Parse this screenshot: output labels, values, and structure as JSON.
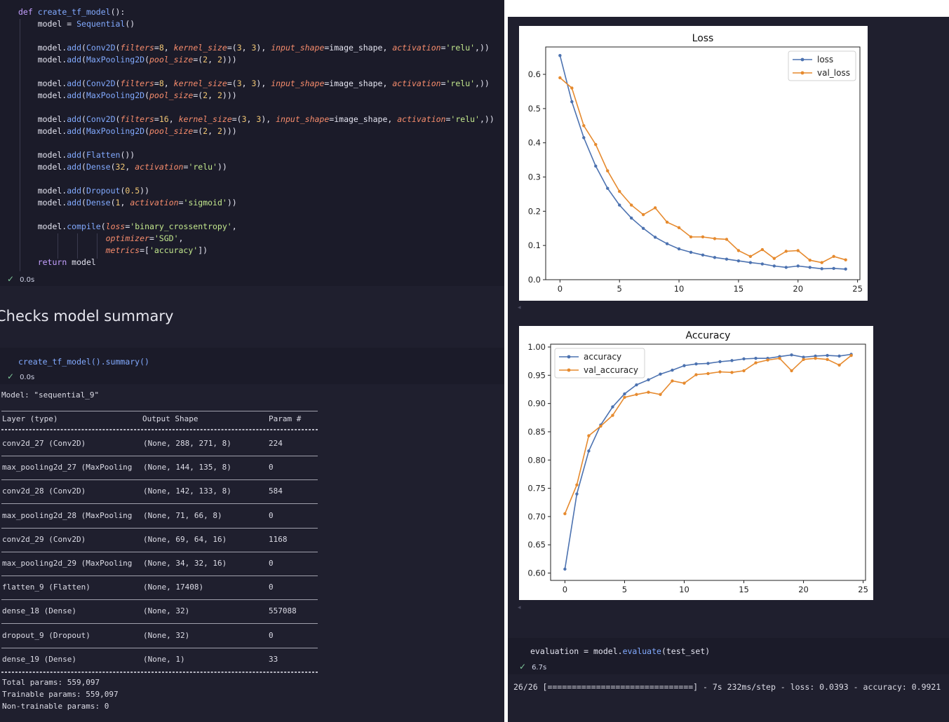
{
  "code_cell_1": {
    "lines": [
      "def create_tf_model():",
      "    model = Sequential()",
      "",
      "    model.add(Conv2D(filters=8, kernel_size=(3, 3), input_shape=image_shape, activation='relu',))",
      "    model.add(MaxPooling2D(pool_size=(2, 2)))",
      "",
      "    model.add(Conv2D(filters=8, kernel_size=(3, 3), input_shape=image_shape, activation='relu',))",
      "    model.add(MaxPooling2D(pool_size=(2, 2)))",
      "",
      "    model.add(Conv2D(filters=16, kernel_size=(3, 3), input_shape=image_shape, activation='relu',))",
      "    model.add(MaxPooling2D(pool_size=(2, 2)))",
      "",
      "    model.add(Flatten())",
      "    model.add(Dense(32, activation='relu'))",
      "",
      "    model.add(Dropout(0.5))",
      "    model.add(Dense(1, activation='sigmoid'))",
      "",
      "    model.compile(loss='binary_crossentropy',",
      "                  optimizer='SGD',",
      "                  metrics=['accuracy'])",
      "    return model"
    ],
    "exec_time": "0.0s"
  },
  "markdown": {
    "heading": "Checks model summary"
  },
  "code_cell_2": {
    "code": "create_tf_model().summary()",
    "exec_time": "0.0s"
  },
  "summary": {
    "model_line": "Model: \"sequential_9\"",
    "headers": [
      "Layer (type)",
      "Output Shape",
      "Param #"
    ],
    "equals_line": "=================================================================",
    "rows": [
      [
        "conv2d_27 (Conv2D)",
        "(None, 288, 271, 8)",
        "224"
      ],
      [
        "max_pooling2d_27 (MaxPooling",
        "(None, 144, 135, 8)",
        "0"
      ],
      [
        "conv2d_28 (Conv2D)",
        "(None, 142, 133, 8)",
        "584"
      ],
      [
        "max_pooling2d_28 (MaxPooling",
        "(None, 71, 66, 8)",
        "0"
      ],
      [
        "conv2d_29 (Conv2D)",
        "(None, 69, 64, 16)",
        "1168"
      ],
      [
        "max_pooling2d_29 (MaxPooling",
        "(None, 34, 32, 16)",
        "0"
      ],
      [
        "flatten_9 (Flatten)",
        "(None, 17408)",
        "0"
      ],
      [
        "dense_18 (Dense)",
        "(None, 32)",
        "557088"
      ],
      [
        "dropout_9 (Dropout)",
        "(None, 32)",
        "0"
      ],
      [
        "dense_19 (Dense)",
        "(None, 1)",
        "33"
      ]
    ],
    "total": "Total params: 559,097",
    "trainable": "Trainable params: 559,097",
    "non_trainable": "Non-trainable params: 0"
  },
  "colors": {
    "blue": "#4c72b0",
    "orange": "#e68a2e"
  },
  "chart_data": [
    {
      "type": "line",
      "title": "Loss",
      "x": [
        0,
        1,
        2,
        3,
        4,
        5,
        6,
        7,
        8,
        9,
        10,
        11,
        12,
        13,
        14,
        15,
        16,
        17,
        18,
        19,
        20,
        21,
        22,
        23,
        24
      ],
      "xticks": [
        "0",
        "5",
        "10",
        "15",
        "20",
        "25"
      ],
      "yticks": [
        "0.0",
        "0.1",
        "0.2",
        "0.3",
        "0.4",
        "0.5",
        "0.6"
      ],
      "xlim": [
        -1.2,
        25.2
      ],
      "ylim": [
        0.0,
        0.68
      ],
      "legend": "top-right",
      "series": [
        {
          "name": "loss",
          "color": "#4c72b0",
          "values": [
            0.655,
            0.52,
            0.415,
            0.332,
            0.267,
            0.218,
            0.18,
            0.15,
            0.124,
            0.105,
            0.09,
            0.08,
            0.072,
            0.065,
            0.06,
            0.055,
            0.05,
            0.046,
            0.04,
            0.036,
            0.04,
            0.036,
            0.032,
            0.033,
            0.031
          ]
        },
        {
          "name": "val_loss",
          "color": "#e68a2e",
          "values": [
            0.59,
            0.56,
            0.45,
            0.395,
            0.318,
            0.258,
            0.218,
            0.19,
            0.21,
            0.168,
            0.152,
            0.125,
            0.125,
            0.12,
            0.118,
            0.085,
            0.068,
            0.088,
            0.062,
            0.083,
            0.085,
            0.057,
            0.05,
            0.068,
            0.058
          ]
        }
      ]
    },
    {
      "type": "line",
      "title": "Accuracy",
      "x": [
        0,
        1,
        2,
        3,
        4,
        5,
        6,
        7,
        8,
        9,
        10,
        11,
        12,
        13,
        14,
        15,
        16,
        17,
        18,
        19,
        20,
        21,
        22,
        23,
        24
      ],
      "xticks": [
        "0",
        "5",
        "10",
        "15",
        "20",
        "25"
      ],
      "yticks": [
        "0.60",
        "0.65",
        "0.70",
        "0.75",
        "0.80",
        "0.85",
        "0.90",
        "0.95",
        "1.00"
      ],
      "xlim": [
        -1.2,
        25.2
      ],
      "ylim": [
        0.587,
        1.005
      ],
      "legend": "top-left",
      "series": [
        {
          "name": "accuracy",
          "color": "#4c72b0",
          "values": [
            0.607,
            0.74,
            0.816,
            0.862,
            0.894,
            0.917,
            0.933,
            0.942,
            0.952,
            0.959,
            0.967,
            0.97,
            0.971,
            0.974,
            0.976,
            0.979,
            0.98,
            0.98,
            0.983,
            0.986,
            0.982,
            0.984,
            0.985,
            0.984,
            0.987
          ]
        },
        {
          "name": "val_accuracy",
          "color": "#e68a2e",
          "values": [
            0.705,
            0.756,
            0.843,
            0.86,
            0.879,
            0.911,
            0.916,
            0.92,
            0.916,
            0.94,
            0.936,
            0.951,
            0.953,
            0.956,
            0.955,
            0.958,
            0.972,
            0.977,
            0.98,
            0.958,
            0.978,
            0.98,
            0.978,
            0.968,
            0.985
          ]
        }
      ]
    }
  ],
  "eval_cell": {
    "code": "evaluation = model.evaluate(test_set)",
    "exec_time": "6.7s",
    "output": "26/26 [==============================] - 7s 232ms/step - loss: 0.0393 - accuracy: 0.9921"
  }
}
